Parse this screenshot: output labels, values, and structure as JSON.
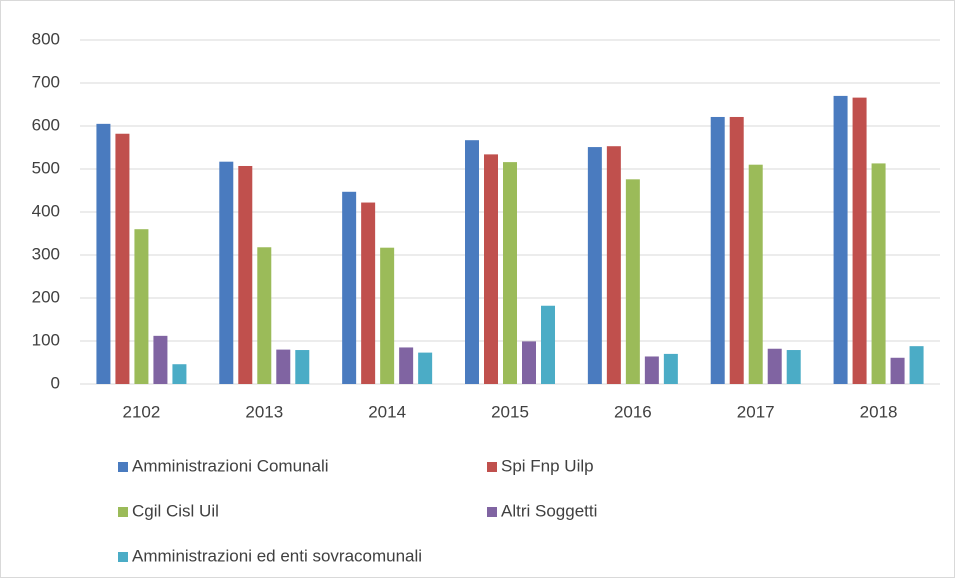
{
  "chart_data": {
    "type": "bar",
    "categories": [
      "2102",
      "2013",
      "2014",
      "2015",
      "2016",
      "2017",
      "2018"
    ],
    "series": [
      {
        "name": "Amministrazioni Comunali",
        "color": "#4a7bbf",
        "values": [
          605,
          517,
          447,
          567,
          551,
          621,
          670
        ]
      },
      {
        "name": "Spi Fnp Uilp",
        "color": "#c0504d",
        "values": [
          582,
          507,
          422,
          534,
          553,
          621,
          666
        ]
      },
      {
        "name": "Cgil Cisl Uil",
        "color": "#9bbb59",
        "values": [
          360,
          318,
          317,
          516,
          476,
          510,
          513
        ]
      },
      {
        "name": "Altri Soggetti",
        "color": "#8064a2",
        "values": [
          112,
          80,
          85,
          99,
          64,
          82,
          61
        ]
      },
      {
        "name": "Amministrazioni ed enti sovracomunali",
        "color": "#4bacc6",
        "values": [
          46,
          79,
          73,
          182,
          70,
          79,
          88
        ]
      }
    ],
    "ylim": [
      0,
      800
    ],
    "yticks": [
      0,
      100,
      200,
      300,
      400,
      500,
      600,
      700,
      800
    ],
    "grid": true
  }
}
